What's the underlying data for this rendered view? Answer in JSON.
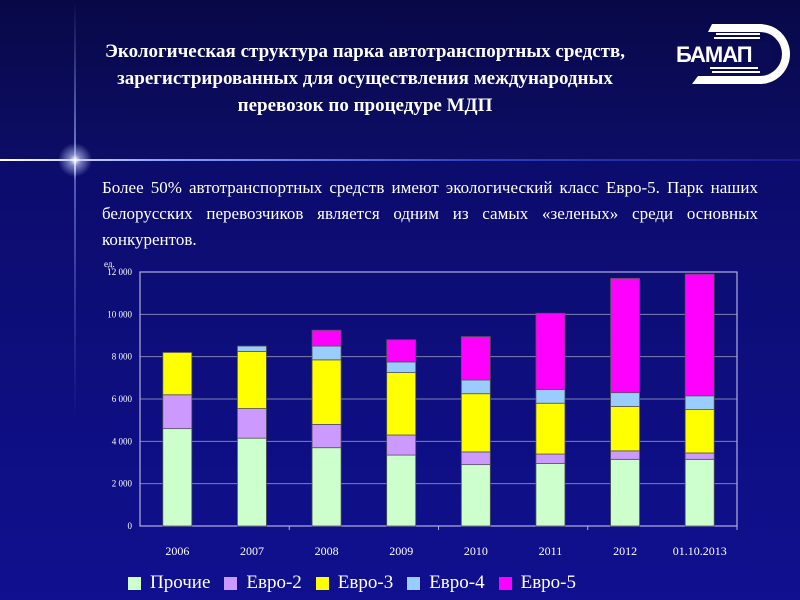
{
  "title": "Экологическая структура парка автотранспортных средств, зарегистрированных для осуществления международных перевозок по процедуре МДП",
  "logo_text": "БАМАП",
  "paragraph": "Более 50% автотранспортных средств имеют экологический класс Евро-5. Парк наших белорусских перевозчиков является одним из самых «зеленых» среди основных конкурентов.",
  "chart_data": {
    "type": "bar",
    "stacked": true,
    "title": "",
    "xlabel": "",
    "ylabel": "ед.",
    "ylim": [
      0,
      12000
    ],
    "yticks": [
      0,
      2000,
      4000,
      6000,
      8000,
      10000,
      12000
    ],
    "ytick_labels": [
      "0",
      "2 000",
      "4 000",
      "6 000",
      "8 000",
      "10 000",
      "12 000"
    ],
    "grid": true,
    "legend_position": "bottom",
    "categories": [
      "2006",
      "2007",
      "2008",
      "2009",
      "2010",
      "2011",
      "2012",
      "01.10.2013"
    ],
    "series": [
      {
        "name": "Прочие",
        "color": "#ccffcc",
        "values": [
          4600,
          4150,
          3700,
          3350,
          2900,
          2950,
          3150,
          3150
        ]
      },
      {
        "name": "Евро-2",
        "color": "#cc99ff",
        "values": [
          1600,
          1400,
          1100,
          950,
          600,
          450,
          400,
          300
        ]
      },
      {
        "name": "Евро-3",
        "color": "#ffff00",
        "values": [
          2000,
          2700,
          3050,
          2950,
          2750,
          2400,
          2100,
          2050
        ]
      },
      {
        "name": "Евро-4",
        "color": "#99ccff",
        "values": [
          0,
          250,
          650,
          500,
          650,
          650,
          650,
          650
        ]
      },
      {
        "name": "Евро-5",
        "color": "#ff00ff",
        "values": [
          0,
          0,
          750,
          1050,
          2050,
          3600,
          5400,
          5750
        ]
      }
    ]
  }
}
